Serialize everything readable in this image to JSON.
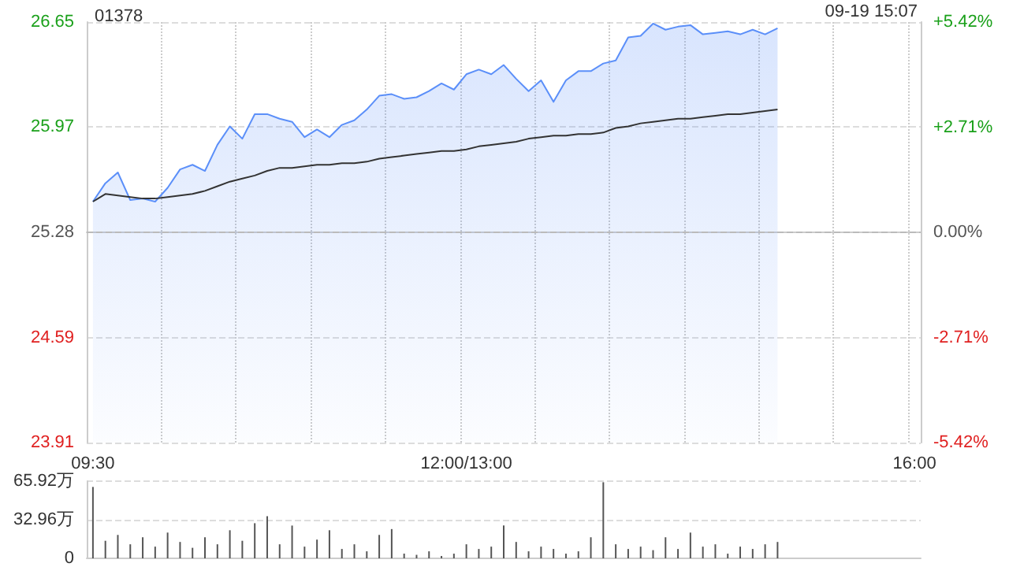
{
  "chart_data": [
    {
      "type": "area",
      "title": "01378",
      "annotations": [
        "09-19 15:07"
      ],
      "categories": [
        "09:30",
        null,
        null,
        null,
        null,
        null,
        null,
        null,
        null,
        null,
        null,
        null,
        null,
        null,
        null,
        null,
        null,
        null,
        null,
        null,
        null,
        null,
        null,
        null,
        null,
        null,
        null,
        null,
        null,
        null,
        "12:00/13:00",
        null,
        null,
        null,
        null,
        null,
        null,
        null,
        null,
        null,
        null,
        null,
        null,
        null,
        null,
        null,
        null,
        null,
        null,
        null,
        null,
        null,
        null,
        null,
        null,
        null,
        null,
        null,
        null,
        null,
        null,
        null,
        null,
        null,
        null,
        null,
        "16:00"
      ],
      "ylim": [
        23.91,
        26.65
      ],
      "yticks": [
        23.91,
        24.59,
        25.28,
        25.97,
        26.65
      ],
      "y2lim": [
        -5.42,
        5.42
      ],
      "y2ticks": [
        {
          "value": -5.42,
          "label": "-5.42%"
        },
        {
          "value": -2.71,
          "label": "-2.71%"
        },
        {
          "value": 0,
          "label": "0.00%"
        },
        {
          "value": 2.71,
          "label": "+2.71%"
        },
        {
          "value": 5.42,
          "label": "+5.42%"
        }
      ],
      "ref_lines": [
        {
          "axis": "y",
          "value": 25.28,
          "line_style": "dashed",
          "color": "#bbbbbb"
        }
      ],
      "grid": true,
      "marker": "none",
      "series": [
        {
          "color": "#5b8ff9",
          "values": [
            25.48,
            25.6,
            25.67,
            25.49,
            25.5,
            25.48,
            25.57,
            25.69,
            25.72,
            25.68,
            25.85,
            25.97,
            25.89,
            26.05,
            26.05,
            26.02,
            26.0,
            25.9,
            25.95,
            25.9,
            25.98,
            26.01,
            26.08,
            26.17,
            26.18,
            26.15,
            26.16,
            26.2,
            26.25,
            26.21,
            26.31,
            26.34,
            26.31,
            26.37,
            26.28,
            26.2,
            26.27,
            26.13,
            26.27,
            26.33,
            26.33,
            26.38,
            26.4,
            26.55,
            26.56,
            26.64,
            26.6,
            26.62,
            26.63,
            26.57,
            26.58,
            26.59,
            26.57,
            26.6,
            26.57,
            26.61,
            null,
            null,
            null,
            null,
            null,
            null,
            null,
            null,
            null,
            null,
            null
          ]
        },
        {
          "type": "line",
          "color": "#333333",
          "values": [
            25.48,
            25.53,
            25.52,
            25.51,
            25.5,
            25.5,
            25.51,
            25.52,
            25.53,
            25.55,
            25.58,
            25.61,
            25.63,
            25.65,
            25.68,
            25.7,
            25.7,
            25.71,
            25.72,
            25.72,
            25.73,
            25.73,
            25.74,
            25.76,
            25.77,
            25.78,
            25.79,
            25.8,
            25.81,
            25.81,
            25.82,
            25.84,
            25.85,
            25.86,
            25.87,
            25.89,
            25.9,
            25.91,
            25.91,
            25.92,
            25.92,
            25.93,
            25.96,
            25.97,
            25.99,
            26.0,
            26.01,
            26.02,
            26.02,
            26.03,
            26.04,
            26.05,
            26.05,
            26.06,
            26.07,
            26.08,
            null,
            null,
            null,
            null,
            null,
            null,
            null,
            null,
            null,
            null,
            null
          ]
        }
      ]
    },
    {
      "type": "bar",
      "color": "#555555",
      "tick_labels": "y",
      "grid": "y",
      "categories": [
        null,
        null,
        null,
        null,
        null,
        null,
        null,
        null,
        null,
        null,
        null,
        null,
        null,
        null,
        null,
        null,
        null,
        null,
        null,
        null,
        null,
        null,
        null,
        null,
        null,
        null,
        null,
        null,
        null,
        null,
        null,
        null,
        null,
        null,
        null,
        null,
        null,
        null,
        null,
        null,
        null,
        null,
        null,
        null,
        null,
        null,
        null,
        null,
        null,
        null,
        null,
        null,
        null,
        null,
        null,
        null,
        null,
        null,
        null,
        null,
        null,
        null,
        null,
        null,
        null,
        null,
        null
      ],
      "ylim": [
        0,
        65.92
      ],
      "yticks": [
        0,
        {
          "value": 32.96,
          "label": "32.96万"
        },
        {
          "value": 65.92,
          "label": "65.92万"
        }
      ],
      "values": [
        61,
        15,
        20,
        12,
        18,
        10,
        22,
        14,
        9,
        18,
        12,
        24,
        15,
        30,
        36,
        12,
        28,
        10,
        16,
        24,
        8,
        12,
        6,
        20,
        25,
        4,
        3,
        6,
        2,
        4,
        12,
        8,
        10,
        28,
        14,
        6,
        10,
        8,
        4,
        6,
        18,
        65,
        12,
        8,
        10,
        7,
        18,
        8,
        22,
        10,
        12,
        4,
        10,
        8,
        12,
        14,
        null,
        null,
        null,
        null,
        null,
        null,
        null,
        null,
        null,
        null,
        null
      ]
    }
  ]
}
